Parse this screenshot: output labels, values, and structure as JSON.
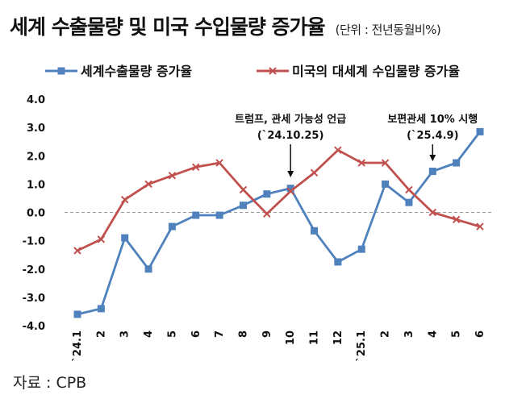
{
  "title": "세계 수출물량 및 미국 수입물량 증가율",
  "unit_note": "(단위 : 전년동월비%)",
  "source_text": "자료 : CPB",
  "colors": {
    "series1": "#4f81bd",
    "series2": "#c0504d"
  },
  "chart_data": {
    "type": "line",
    "categories": [
      "`24.1",
      "2",
      "3",
      "4",
      "5",
      "6",
      "7",
      "8",
      "9",
      "10",
      "11",
      "12",
      "`25.1",
      "2",
      "3",
      "4",
      "5",
      "6"
    ],
    "ylim": [
      -4,
      4
    ],
    "yticks": [
      "4.0",
      "3.0",
      "2.0",
      "1.0",
      "0.0",
      "-1.0",
      "-2.0",
      "-3.0",
      "-4.0"
    ],
    "grid": false,
    "legend_position": "top",
    "series": [
      {
        "name": "세계수출물량 증가율",
        "marker": "square",
        "values": [
          -3.6,
          -3.4,
          -0.9,
          -2.0,
          -0.5,
          -0.1,
          -0.1,
          0.25,
          0.65,
          0.85,
          -0.65,
          -1.75,
          -1.3,
          1.0,
          0.35,
          1.45,
          1.75,
          2.85
        ]
      },
      {
        "name": "미국의 대세계 수입물량 증가율",
        "marker": "x",
        "values": [
          -1.35,
          -0.95,
          0.45,
          1.0,
          1.3,
          1.6,
          1.75,
          0.8,
          -0.05,
          0.75,
          1.4,
          2.2,
          1.75,
          1.75,
          0.8,
          0.0,
          -0.25,
          -0.5
        ]
      }
    ],
    "annotations": [
      {
        "category_index": 9,
        "lines": [
          "트럼프, 관세 가능성 언급",
          "(`24.10.25)"
        ]
      },
      {
        "category_index": 15,
        "lines": [
          "보편관세 10% 시행",
          "(`25.4.9)"
        ]
      }
    ]
  }
}
